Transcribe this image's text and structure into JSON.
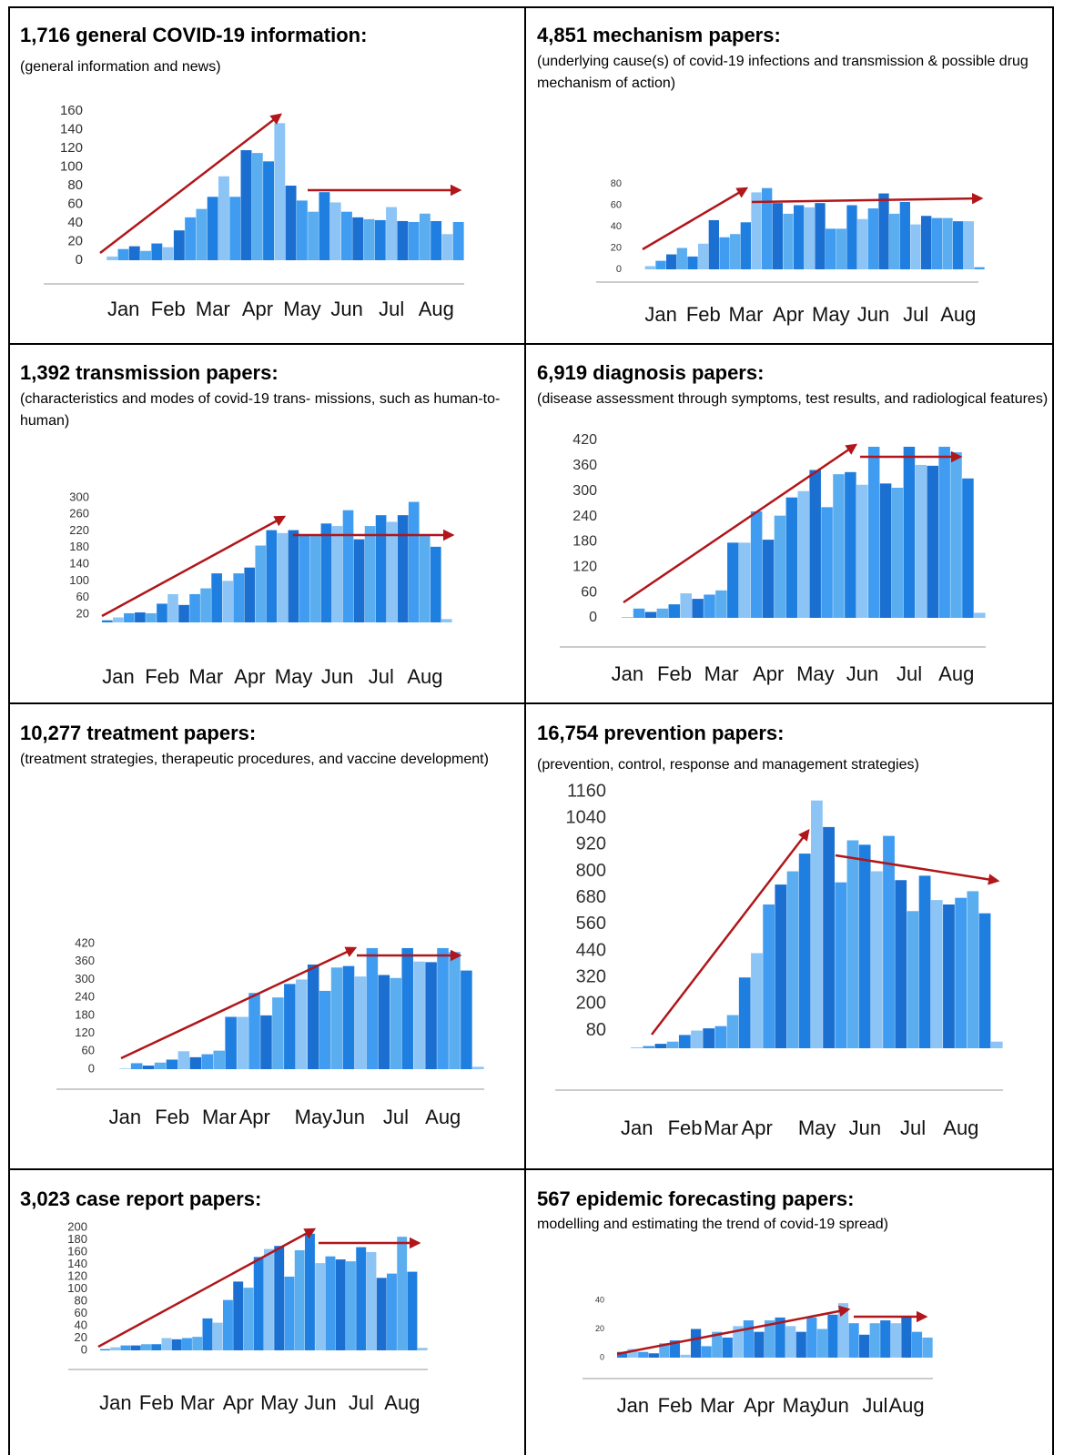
{
  "chart_data": [
    {
      "type": "bar",
      "title": "1,716 general COVID-19 information:",
      "subtitle": "(general information and news)",
      "categories": [
        null,
        null,
        "Jan",
        null,
        null,
        null,
        "Feb",
        null,
        null,
        null,
        "Mar",
        null,
        null,
        null,
        "Apr",
        null,
        null,
        null,
        "May",
        null,
        null,
        null,
        "Jun",
        null,
        null,
        null,
        "Jul",
        null,
        null,
        null,
        "Aug",
        null,
        null
      ],
      "values": [
        0,
        4,
        12,
        15,
        10,
        18,
        14,
        32,
        46,
        55,
        68,
        90,
        68,
        118,
        115,
        106,
        147,
        80,
        64,
        52,
        73,
        62,
        52,
        46,
        44,
        43,
        57,
        42,
        41,
        50,
        42,
        28,
        41
      ],
      "ylim": [
        0,
        160
      ],
      "yticks": [
        0,
        20,
        40,
        60,
        80,
        100,
        120,
        140,
        160
      ],
      "colors": [
        "#1f7fe0",
        "#3f9cf0",
        "#8cc4f5",
        "#5aaef0",
        "#1a6fd0"
      ]
    },
    {
      "type": "bar",
      "title": "4,851 mechanism papers:",
      "subtitle": "(underlying cause(s) of covid-19 infections and transmission & possible drug mechanism of action)",
      "categories": [
        null,
        null,
        "Jan",
        null,
        null,
        null,
        "Feb",
        null,
        null,
        null,
        "Mar",
        null,
        null,
        null,
        "Apr",
        null,
        null,
        null,
        "May",
        null,
        null,
        null,
        "Jun",
        null,
        null,
        null,
        "Jul",
        null,
        null,
        null,
        "Aug",
        null,
        null
      ],
      "values": [
        0,
        3,
        8,
        14,
        20,
        12,
        24,
        46,
        30,
        33,
        44,
        72,
        76,
        62,
        52,
        60,
        58,
        62,
        38,
        38,
        60,
        47,
        57,
        71,
        52,
        63,
        42,
        50,
        48,
        48,
        45,
        45,
        2
      ],
      "ylim": [
        0,
        80
      ],
      "yticks": [
        0,
        20,
        40,
        60,
        80
      ],
      "colors": [
        "#1f7fe0",
        "#3f9cf0",
        "#8cc4f5",
        "#5aaef0",
        "#1a6fd0"
      ]
    },
    {
      "type": "bar",
      "title": "1,392 transmission papers:",
      "subtitle": "(characteristics and modes of covid-19 trans- missions, such as human-to-human)",
      "categories": [
        null,
        "Jan",
        null,
        null,
        null,
        "Feb",
        null,
        null,
        null,
        "Mar",
        null,
        null,
        null,
        "Apr",
        null,
        null,
        null,
        "May",
        null,
        null,
        null,
        "Jun",
        null,
        null,
        null,
        "Jul",
        null,
        null,
        null,
        "Aug",
        null,
        null
      ],
      "values": [
        5,
        12,
        22,
        24,
        22,
        45,
        68,
        42,
        68,
        82,
        118,
        100,
        118,
        132,
        185,
        222,
        215,
        222,
        212,
        212,
        238,
        232,
        270,
        200,
        232,
        258,
        242,
        258,
        290,
        210,
        182,
        8
      ],
      "ylim": [
        0,
        300
      ],
      "yticks": [
        20,
        60,
        100,
        140,
        180,
        220,
        260,
        300
      ],
      "colors": [
        "#1f7fe0",
        "#3f9cf0",
        "#8cc4f5",
        "#5aaef0",
        "#1a6fd0"
      ]
    },
    {
      "type": "bar",
      "title": "6,919 diagnosis papers:",
      "subtitle": "(disease assessment through symptoms, test results, and radiological features)",
      "categories": [
        null,
        "Jan",
        null,
        null,
        null,
        "Feb",
        null,
        null,
        null,
        "Mar",
        null,
        null,
        null,
        "Apr",
        null,
        null,
        null,
        "May",
        null,
        null,
        null,
        "Jun",
        null,
        null,
        null,
        "Jul",
        null,
        null,
        null,
        "Aug",
        null,
        null
      ],
      "values": [
        0,
        2,
        22,
        14,
        22,
        32,
        58,
        45,
        55,
        65,
        178,
        178,
        252,
        185,
        242,
        285,
        300,
        350,
        262,
        340,
        345,
        315,
        405,
        318,
        308,
        405,
        362,
        360,
        405,
        392,
        330,
        12
      ],
      "ylim": [
        0,
        420
      ],
      "yticks": [
        0,
        60,
        120,
        180,
        240,
        300,
        360,
        420
      ],
      "colors": [
        "#1f7fe0",
        "#3f9cf0",
        "#8cc4f5",
        "#5aaef0",
        "#1a6fd0"
      ]
    },
    {
      "type": "bar",
      "title": "10,277 treatment papers:",
      "subtitle": "(treatment strategies, therapeutic procedures, and vaccine development)",
      "categories": [
        null,
        "Jan",
        null,
        null,
        null,
        "Feb",
        null,
        null,
        null,
        "Mar",
        null,
        null,
        "Apr",
        null,
        null,
        null,
        null,
        "May",
        null,
        null,
        "Jun",
        null,
        null,
        null,
        "Jul",
        null,
        null,
        null,
        "Aug",
        null,
        null,
        null
      ],
      "values": [
        0,
        2,
        20,
        12,
        22,
        32,
        60,
        40,
        50,
        62,
        175,
        175,
        255,
        180,
        240,
        285,
        300,
        350,
        262,
        340,
        345,
        310,
        405,
        315,
        305,
        405,
        360,
        358,
        405,
        392,
        330,
        8
      ],
      "ylim": [
        0,
        420
      ],
      "yticks": [
        0,
        60,
        120,
        180,
        240,
        300,
        360,
        420
      ],
      "colors": [
        "#1f7fe0",
        "#3f9cf0",
        "#8cc4f5",
        "#5aaef0",
        "#1a6fd0"
      ]
    },
    {
      "type": "bar",
      "title": "16,754 prevention papers:",
      "subtitle": "(prevention, control, response and management strategies)",
      "categories": [
        null,
        "Jan",
        null,
        null,
        null,
        "Feb",
        null,
        null,
        "Mar",
        null,
        null,
        "Apr",
        null,
        null,
        null,
        null,
        "May",
        null,
        null,
        null,
        "Jun",
        null,
        null,
        null,
        "Jul",
        null,
        null,
        null,
        "Aug",
        null,
        null,
        null
      ],
      "values": [
        0,
        4,
        10,
        20,
        30,
        60,
        80,
        90,
        100,
        150,
        320,
        430,
        650,
        740,
        800,
        880,
        1120,
        1000,
        750,
        940,
        920,
        800,
        960,
        760,
        620,
        780,
        670,
        650,
        680,
        710,
        610,
        30
      ],
      "ylim": [
        0,
        1160
      ],
      "yticks": [
        80,
        200,
        320,
        440,
        560,
        680,
        800,
        920,
        1040,
        1160
      ],
      "colors": [
        "#1f7fe0",
        "#3f9cf0",
        "#8cc4f5",
        "#5aaef0",
        "#1a6fd0"
      ]
    },
    {
      "type": "bar",
      "title": "3,023 case report papers:",
      "subtitle": null,
      "categories": [
        null,
        "Jan",
        null,
        null,
        null,
        "Feb",
        null,
        null,
        null,
        "Mar",
        null,
        null,
        null,
        "Apr",
        null,
        null,
        null,
        "May",
        null,
        null,
        null,
        "Jun",
        null,
        null,
        null,
        "Jul",
        null,
        null,
        null,
        "Aug",
        null,
        null
      ],
      "values": [
        2,
        5,
        8,
        8,
        10,
        10,
        20,
        18,
        20,
        22,
        52,
        45,
        82,
        112,
        102,
        152,
        165,
        170,
        120,
        163,
        190,
        142,
        153,
        148,
        145,
        168,
        160,
        118,
        125,
        185,
        128,
        4
      ],
      "ylim": [
        0,
        200
      ],
      "yticks": [
        0,
        20,
        40,
        60,
        80,
        100,
        120,
        140,
        160,
        180,
        200
      ],
      "colors": [
        "#1f7fe0",
        "#3f9cf0",
        "#8cc4f5",
        "#5aaef0",
        "#1a6fd0"
      ]
    },
    {
      "type": "bar",
      "title": "567 epidemic forecasting papers:",
      "subtitle": "modelling and estimating the trend of covid-19 spread)",
      "categories": [
        null,
        "Jan",
        null,
        null,
        null,
        "Feb",
        null,
        null,
        null,
        "Mar",
        null,
        null,
        null,
        "Apr",
        null,
        null,
        null,
        "May",
        null,
        null,
        "Jun",
        null,
        null,
        null,
        "Jul",
        null,
        null,
        "Aug",
        null,
        null
      ],
      "values": [
        4,
        6,
        4,
        3,
        10,
        12,
        2,
        20,
        8,
        18,
        14,
        22,
        26,
        18,
        26,
        28,
        22,
        18,
        28,
        20,
        30,
        38,
        24,
        16,
        24,
        26,
        24,
        28,
        18,
        14
      ],
      "ylim": [
        0,
        40
      ],
      "yticks": [
        0,
        20,
        40
      ],
      "colors": [
        "#1f7fe0",
        "#3f9cf0",
        "#8cc4f5",
        "#5aaef0",
        "#1a6fd0"
      ]
    }
  ]
}
